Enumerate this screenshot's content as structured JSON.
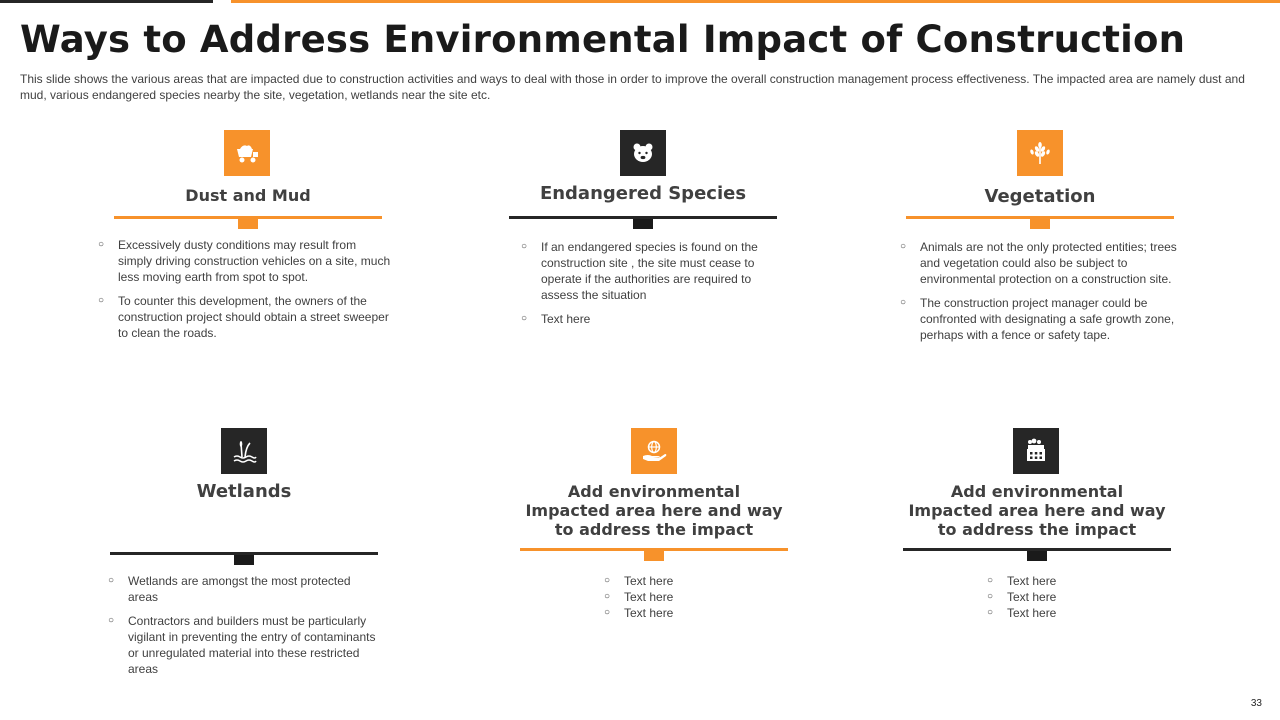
{
  "slide": {
    "title": "Ways to Address Environmental Impact of Construction",
    "subtitle": "This slide shows the various  areas that are impacted due to construction activities and ways to deal with those in order to improve  the overall  construction management process effectiveness. The impacted area are namely dust and mud, various endangered  species nearby the site, vegetation,  wetlands near the site etc.",
    "page_number": "33"
  },
  "colors": {
    "accent": "#f7922b",
    "dark": "#262626"
  },
  "cards": [
    {
      "title": "Dust and Mud",
      "icon": "dump-truck-icon",
      "points": [
        "Excessively dusty conditions  may result from simply driving  construction vehicles  on a site, much less moving  earth from spot to spot.",
        "To counter this development,  the owners of the construction project should obtain a street sweeper to clean the roads."
      ]
    },
    {
      "title": "Endangered Species",
      "icon": "bear-icon",
      "points": [
        "If an endangered  species is found  on the construction site , the site must cease to operate  if the authorities are required  to assess the situation",
        "Text here"
      ]
    },
    {
      "title": "Vegetation",
      "icon": "wheat-icon",
      "points": [
        "Animals are not the only protected entities; trees and vegetation  could also be subject to environmental  protection  on a construction site.",
        "The construction project manager could be confronted with designating  a safe growth zone, perhaps with a fence or safety tape."
      ]
    },
    {
      "title": "Wetlands",
      "icon": "reeds-water-icon",
      "points": [
        "Wetlands are amongst the most protected areas",
        "Contractors and builders must be particularly vigilant  in preventing  the entry of contaminants or unregulated  material into these restricted areas"
      ]
    },
    {
      "title": "Add environmental Impacted area here and way to address the impact",
      "icon": "globe-in-hand-icon",
      "points": [
        "Text here",
        "Text here",
        "Text here"
      ]
    },
    {
      "title": "Add environmental Impacted area here and way to address the impact",
      "icon": "factory-icon",
      "points": [
        "Text here",
        "Text here",
        "Text here"
      ]
    }
  ]
}
